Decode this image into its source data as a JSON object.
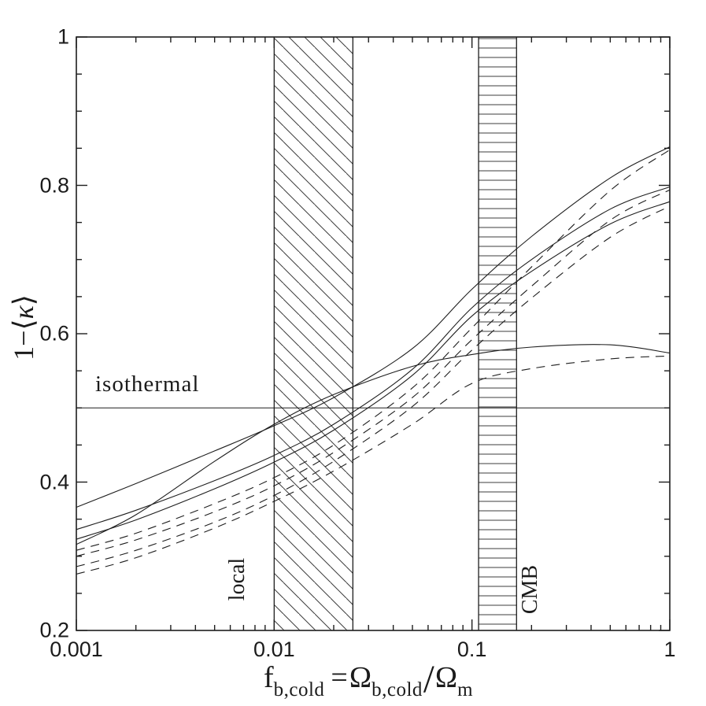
{
  "figure": {
    "background": "#ffffff",
    "ink_color": "#1e1e1e",
    "hatch_color": "#3c3c3c"
  },
  "chart_data": {
    "type": "line",
    "title": "",
    "ylabel": "1−⟨κ⟩",
    "ylabel_parts": [
      {
        "text": "1−⟨"
      },
      {
        "text": "κ"
      },
      {
        "text": "⟩"
      }
    ],
    "xlabel_plain": "f_b,cold = Ω_b,cold / Ω_m",
    "xlabel_parts": [
      {
        "text": "f",
        "sub": false
      },
      {
        "text": "b,cold",
        "sub": true
      },
      {
        "text": "=",
        "sub": false
      },
      {
        "text": "Ω",
        "sub": false
      },
      {
        "text": "b,cold",
        "sub": true
      },
      {
        "text": "/",
        "sub": false
      },
      {
        "text": "Ω",
        "sub": false
      },
      {
        "text": "m",
        "sub": true
      }
    ],
    "x_scale": "log",
    "xlim": [
      0.001,
      1
    ],
    "ylim": [
      0.2,
      1
    ],
    "grid": false,
    "legend": "none",
    "x_ticks": [
      {
        "value": 0.001,
        "label": "0.001"
      },
      {
        "value": 0.01,
        "label": "0.01"
      },
      {
        "value": 0.1,
        "label": "0.1"
      },
      {
        "value": 1,
        "label": "1"
      }
    ],
    "y_ticks": [
      {
        "value": 1,
        "label": "1"
      },
      {
        "value": 0.8,
        "label": "0.8"
      },
      {
        "value": 0.6,
        "label": "0.6"
      },
      {
        "value": 0.4,
        "label": "0.4"
      },
      {
        "value": 0.2,
        "label": "0.2"
      }
    ],
    "y_minor_step": 0.05,
    "reference_line": {
      "y": 0.5,
      "label": "isothermal"
    },
    "bands": [
      {
        "name": "local",
        "label": "local",
        "x_from": 0.01,
        "x_to": 0.025,
        "hatch": "diagonal"
      },
      {
        "name": "CMB",
        "label": "CMB",
        "x_from": 0.108,
        "x_to": 0.168,
        "hatch": "horizontal"
      }
    ],
    "x_samples": [
      0.001,
      0.002,
      0.005,
      0.01,
      0.02,
      0.05,
      0.1,
      0.2,
      0.5,
      1
    ],
    "series": [
      {
        "name": "solid-1",
        "style": "solid",
        "values": [
          0.366,
          0.398,
          0.442,
          0.476,
          0.514,
          0.58,
          0.66,
          0.731,
          0.81,
          0.852
        ]
      },
      {
        "name": "solid-2",
        "style": "solid",
        "values": [
          0.336,
          0.362,
          0.402,
          0.436,
          0.478,
          0.552,
          0.635,
          0.7,
          0.768,
          0.798
        ]
      },
      {
        "name": "solid-3",
        "style": "solid",
        "values": [
          0.323,
          0.349,
          0.391,
          0.427,
          0.47,
          0.544,
          0.624,
          0.684,
          0.748,
          0.778
        ]
      },
      {
        "name": "solid-4",
        "style": "solid",
        "values": [
          0.316,
          0.356,
          0.428,
          0.478,
          0.518,
          0.556,
          0.572,
          0.582,
          0.585,
          0.574
        ]
      },
      {
        "name": "dashed-1",
        "style": "dashed",
        "values": [
          0.308,
          0.331,
          0.371,
          0.406,
          0.45,
          0.527,
          0.608,
          0.69,
          0.793,
          0.848
        ]
      },
      {
        "name": "dashed-2",
        "style": "dashed",
        "values": [
          0.3,
          0.322,
          0.36,
          0.395,
          0.44,
          0.514,
          0.592,
          0.664,
          0.753,
          0.794
        ]
      },
      {
        "name": "dashed-3",
        "style": "dashed",
        "values": [
          0.286,
          0.308,
          0.346,
          0.382,
          0.428,
          0.502,
          0.578,
          0.648,
          0.73,
          0.772
        ]
      },
      {
        "name": "dashed-4",
        "style": "dashed",
        "values": [
          0.276,
          0.298,
          0.338,
          0.374,
          0.415,
          0.478,
          0.533,
          0.553,
          0.566,
          0.57
        ]
      }
    ]
  }
}
